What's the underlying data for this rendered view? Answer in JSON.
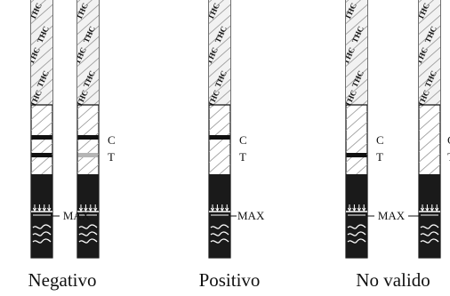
{
  "strip_text": "THC",
  "labels": {
    "c": "C",
    "t": "T",
    "max": "MAX"
  },
  "colors": {
    "ink": "#111111",
    "faint_line": "#b5b5b5",
    "sample_pad": "#1a1a1a"
  },
  "groups": [
    {
      "name": "Negativo",
      "strips": [
        {
          "control_line": "strong",
          "test_line": "strong"
        },
        {
          "control_line": "strong",
          "test_line": "faint"
        }
      ]
    },
    {
      "name": "Positivo",
      "strips": [
        {
          "control_line": "strong",
          "test_line": "none"
        }
      ]
    },
    {
      "name": "No valido",
      "strips": [
        {
          "control_line": "none",
          "test_line": "strong"
        },
        {
          "control_line": "none",
          "test_line": "none"
        }
      ]
    }
  ]
}
